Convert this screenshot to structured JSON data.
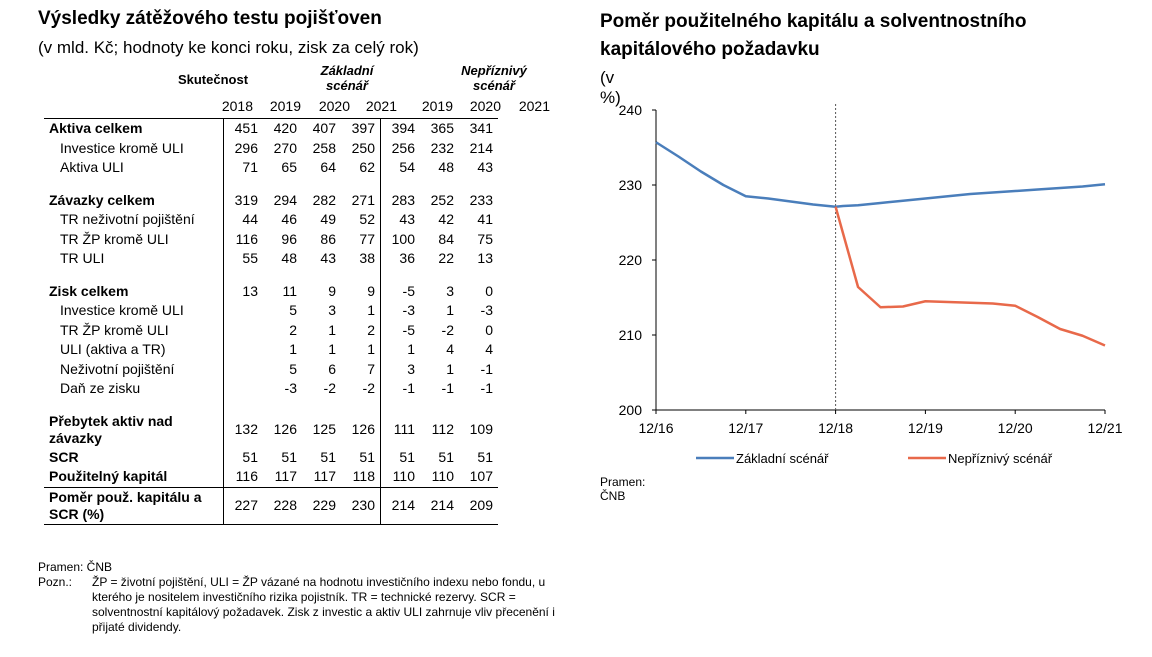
{
  "table": {
    "title": "Výsledky zátěžového testu pojišťoven",
    "subtitle": "(v mld. Kč; hodnoty ke konci roku, zisk za celý rok)",
    "header_actual": "Skutečnost",
    "header_base": "Základní scénář",
    "header_adverse": "Nepříznivý scénář",
    "years": [
      "2018",
      "2019",
      "2020",
      "2021",
      "2019",
      "2020",
      "2021"
    ],
    "rows": [
      {
        "label": "Aktiva celkem",
        "bold": true,
        "values": [
          "451",
          "420",
          "407",
          "397",
          "394",
          "365",
          "341"
        ]
      },
      {
        "label": "Investice kromě ULI",
        "values": [
          "296",
          "270",
          "258",
          "250",
          "256",
          "232",
          "214"
        ]
      },
      {
        "label": "Aktiva ULI",
        "values": [
          "71",
          "65",
          "64",
          "62",
          "54",
          "48",
          "43"
        ]
      },
      {
        "gap": true
      },
      {
        "label": "Závazky celkem",
        "bold": true,
        "values": [
          "319",
          "294",
          "282",
          "271",
          "283",
          "252",
          "233"
        ]
      },
      {
        "label": "TR neživotní pojištění",
        "values": [
          "44",
          "46",
          "49",
          "52",
          "43",
          "42",
          "41"
        ]
      },
      {
        "label": "TR ŽP kromě ULI",
        "values": [
          "116",
          "96",
          "86",
          "77",
          "100",
          "84",
          "75"
        ]
      },
      {
        "label": "TR ULI",
        "values": [
          "55",
          "48",
          "43",
          "38",
          "36",
          "22",
          "13"
        ]
      },
      {
        "gap": true
      },
      {
        "label": "Zisk celkem",
        "bold": true,
        "values": [
          "13",
          "11",
          "9",
          "9",
          "-5",
          "3",
          "0"
        ]
      },
      {
        "label": "Investice kromě ULI",
        "values": [
          "",
          "5",
          "3",
          "1",
          "-3",
          "1",
          "-3"
        ]
      },
      {
        "label": "TR ŽP kromě ULI",
        "values": [
          "",
          "2",
          "1",
          "2",
          "-5",
          "-2",
          "0"
        ]
      },
      {
        "label": "ULI (aktiva a TR)",
        "values": [
          "",
          "1",
          "1",
          "1",
          "1",
          "4",
          "4"
        ]
      },
      {
        "label": "Neživotní pojištění",
        "values": [
          "",
          "5",
          "6",
          "7",
          "3",
          "1",
          "-1"
        ]
      },
      {
        "label": "Daň ze zisku",
        "values": [
          "",
          "-3",
          "-2",
          "-2",
          "-1",
          "-1",
          "-1"
        ]
      },
      {
        "gap": true
      },
      {
        "label": "Přebytek aktiv nad závazky",
        "bold": true,
        "two_line": true,
        "values": [
          "132",
          "126",
          "125",
          "126",
          "111",
          "112",
          "109"
        ]
      },
      {
        "label": "SCR",
        "bold": true,
        "values": [
          "51",
          "51",
          "51",
          "51",
          "51",
          "51",
          "51"
        ]
      },
      {
        "label": "Použitelný kapitál",
        "bold": true,
        "values": [
          "116",
          "117",
          "117",
          "118",
          "110",
          "110",
          "107"
        ]
      },
      {
        "label": "Poměr použ. kapitálu a SCR (%)",
        "bold": true,
        "two_line": true,
        "final": true,
        "values": [
          "227",
          "228",
          "229",
          "230",
          "214",
          "214",
          "209"
        ]
      }
    ],
    "source": "Pramen: ČNB",
    "note_label": "Pozn.:",
    "note": "ŽP = životní pojištění, ULI = ŽP vázané na hodnotu investičního indexu nebo fondu, u kterého je nositelem investičního rizika pojistník. TR = technické rezervy. SCR = solventnostní kapitálový požadavek. Zisk z investic a aktiv ULI zahrnuje vliv přecenění i přijaté dividendy."
  },
  "chart_data": {
    "type": "line",
    "title": "Poměr použitelného kapitálu a solventnostního kapitálového požadavku",
    "ylabel": "(v %)",
    "xlabel": "",
    "ylim": [
      200,
      240
    ],
    "yticks": [
      200,
      210,
      220,
      230,
      240
    ],
    "xticks": [
      "12/16",
      "12/17",
      "12/18",
      "12/19",
      "12/20",
      "12/21"
    ],
    "xrange": [
      0,
      60
    ],
    "vline_at": 24,
    "series": [
      {
        "name": "Základní scénář",
        "color": "#4a7ebb",
        "x": [
          0,
          3,
          6,
          9,
          12,
          15,
          18,
          21,
          24,
          25,
          27,
          30,
          33,
          36,
          39,
          42,
          45,
          48,
          51,
          54,
          57,
          60
        ],
        "y": [
          235.7,
          233.8,
          231.8,
          230.0,
          228.5,
          228.2,
          227.8,
          227.4,
          227.1,
          227.2,
          227.3,
          227.6,
          227.9,
          228.2,
          228.5,
          228.8,
          229.0,
          229.2,
          229.4,
          229.6,
          229.8,
          230.1
        ]
      },
      {
        "name": "Nepříznivý scénář",
        "color": "#e8694a",
        "x": [
          24,
          27,
          30,
          33,
          36,
          39,
          42,
          45,
          48,
          51,
          54,
          57,
          60
        ],
        "y": [
          227.1,
          216.4,
          213.7,
          213.8,
          214.5,
          214.4,
          214.3,
          214.2,
          213.9,
          212.4,
          210.8,
          209.9,
          208.6
        ]
      }
    ]
  },
  "chart_source": "Pramen: ČNB"
}
